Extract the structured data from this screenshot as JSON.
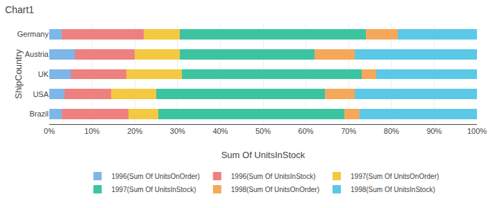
{
  "chart_data": {
    "type": "bar",
    "orientation": "horizontal",
    "stacked": true,
    "title": "Chart1",
    "xlabel": "Sum Of UnitsInStock",
    "ylabel": "ShipCountry",
    "categories": [
      "Brazil",
      "USA",
      "UK",
      "Austria",
      "Germany"
    ],
    "series": [
      {
        "name": "1996(Sum Of UnitsOnOrder)",
        "color": "#7EB6E8",
        "values": [
          3.0,
          3.5,
          5.0,
          6.0,
          3.0
        ]
      },
      {
        "name": "1996(Sum Of UnitsInStock)",
        "color": "#EE8080",
        "values": [
          15.5,
          11.0,
          13.0,
          14.0,
          19.0
        ]
      },
      {
        "name": "1997(Sum Of UnitsOnOrder)",
        "color": "#F5C842",
        "values": [
          7.0,
          10.5,
          13.0,
          10.5,
          8.5
        ]
      },
      {
        "name": "1997(Sum Of UnitsInStock)",
        "color": "#3CC4A0",
        "values": [
          43.5,
          39.5,
          42.0,
          31.5,
          43.5
        ]
      },
      {
        "name": "1998(Sum Of UnitsOnOrder)",
        "color": "#F5A85A",
        "values": [
          3.5,
          7.0,
          3.5,
          9.5,
          7.5
        ]
      },
      {
        "name": "1998(Sum Of UnitsInStock)",
        "color": "#5BC8E8",
        "values": [
          27.5,
          28.5,
          23.5,
          28.5,
          18.5
        ]
      }
    ],
    "xlim": [
      0,
      100
    ],
    "xticks": [
      {
        "value": 0,
        "label": "0%"
      },
      {
        "value": 10,
        "label": "10%"
      },
      {
        "value": 20,
        "label": "20%"
      },
      {
        "value": 30,
        "label": "30%"
      },
      {
        "value": 40,
        "label": "40%"
      },
      {
        "value": 50,
        "label": "50%"
      },
      {
        "value": 60,
        "label": "60%"
      },
      {
        "value": 70,
        "label": "70%"
      },
      {
        "value": 80,
        "label": "80%"
      },
      {
        "value": 90,
        "label": "90%"
      },
      {
        "value": 100,
        "label": "100%"
      }
    ],
    "grid": true,
    "legend": "bottom"
  }
}
